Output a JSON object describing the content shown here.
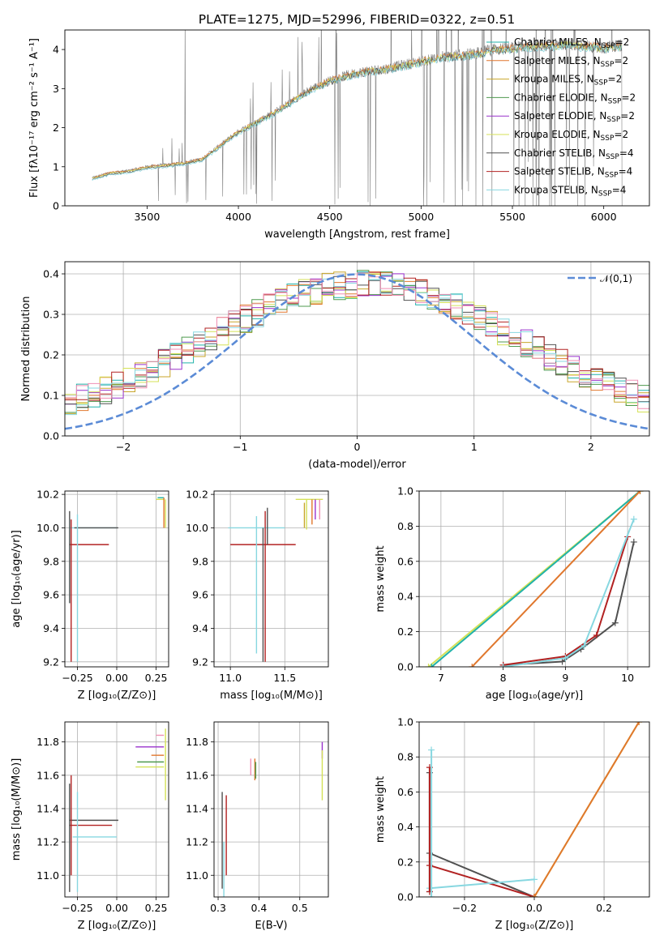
{
  "title": "PLATE=1275, MJD=52996, FIBERID=0322, z=0.51",
  "colors": {
    "chabrier_miles": "#20b2aa",
    "salpeter_miles": "#e0772d",
    "kroupa_miles": "#c8a62a",
    "chabrier_elodie": "#4f9a4f",
    "salpeter_elodie": "#9932cc",
    "kroupa_elodie": "#d4e157",
    "chabrier_stelib": "#505050",
    "salpeter_stelib": "#b22222",
    "kroupa_stelib": "#87d7e0",
    "pink": "#f08fb4",
    "gaussian": "#5b8bd6",
    "data": "#808080"
  },
  "chart_data": [
    {
      "type": "line",
      "id": "spectrum",
      "xlabel": "wavelength [Angstrom, rest frame]",
      "ylabel": "Flux [fλ10⁻¹⁷ erg cm⁻² s⁻¹ A⁻¹]",
      "xlim": [
        3050,
        6250
      ],
      "ylim": [
        0,
        4.5
      ],
      "xticks": [
        "3500",
        "4000",
        "4500",
        "5000",
        "5500",
        "6000"
      ],
      "yticks": [
        "0",
        "1",
        "2",
        "3",
        "4"
      ],
      "legend_position": "top-right",
      "legend": [
        {
          "pre": "Chabrier MILES, N",
          "sub": "SSP",
          "post": "=2"
        },
        {
          "pre": "Salpeter MILES, N",
          "sub": "SSP",
          "post": "=2"
        },
        {
          "pre": "Kroupa MILES, N",
          "sub": "SSP",
          "post": "=2"
        },
        {
          "pre": "Chabrier ELODIE, N",
          "sub": "SSP",
          "post": "=2"
        },
        {
          "pre": "Salpeter ELODIE, N",
          "sub": "SSP",
          "post": "=2"
        },
        {
          "pre": "Kroupa ELODIE, N",
          "sub": "SSP",
          "post": "=2"
        },
        {
          "pre": "Chabrier STELIB, N",
          "sub": "SSP",
          "post": "=4"
        },
        {
          "pre": "Salpeter STELIB, N",
          "sub": "SSP",
          "post": "=4"
        },
        {
          "pre": "Kroupa STELIB, N",
          "sub": "SSP",
          "post": "=4"
        }
      ],
      "continuum": [
        [
          3200,
          0.72
        ],
        [
          3300,
          0.85
        ],
        [
          3400,
          0.9
        ],
        [
          3500,
          1.0
        ],
        [
          3600,
          1.05
        ],
        [
          3700,
          1.1
        ],
        [
          3800,
          1.2
        ],
        [
          3900,
          1.55
        ],
        [
          4000,
          1.9
        ],
        [
          4100,
          2.15
        ],
        [
          4200,
          2.4
        ],
        [
          4300,
          2.7
        ],
        [
          4400,
          3.0
        ],
        [
          4500,
          3.2
        ],
        [
          4600,
          3.35
        ],
        [
          4700,
          3.45
        ],
        [
          4800,
          3.5
        ],
        [
          4900,
          3.6
        ],
        [
          5000,
          3.7
        ],
        [
          5100,
          3.8
        ],
        [
          5200,
          3.85
        ],
        [
          5300,
          3.9
        ],
        [
          5400,
          4.0
        ],
        [
          5500,
          4.05
        ],
        [
          5600,
          4.1
        ],
        [
          5700,
          4.1
        ],
        [
          5800,
          4.15
        ],
        [
          5900,
          4.1
        ],
        [
          6000,
          4.05
        ],
        [
          6100,
          4.1
        ]
      ]
    },
    {
      "type": "line",
      "id": "residuals",
      "xlabel": "(data-model)/error",
      "ylabel": "Normed distribution",
      "xlim": [
        -2.5,
        2.5
      ],
      "ylim": [
        0,
        0.43
      ],
      "xticks": [
        "−2",
        "−1",
        "0",
        "1",
        "2"
      ],
      "yticks": [
        "0.0",
        "0.1",
        "0.2",
        "0.3",
        "0.4"
      ],
      "legend_position": "top-right",
      "legend": [
        {
          "name": "𝒩(0,1)"
        }
      ],
      "bin_width": 0.1,
      "gaussian": {
        "mu": 0,
        "sigma": 1
      }
    },
    {
      "type": "line",
      "id": "age_vs_z",
      "xlabel": "Z [log₁₀(Z/Z⊙)]",
      "ylabel": "age  [log₁₀(age/yr)]",
      "xlim": [
        -0.33,
        0.33
      ],
      "ylim": [
        9.17,
        10.22
      ],
      "xticks": [
        "−0.25",
        "0.00",
        "0.25"
      ],
      "yticks": [
        "9.2",
        "9.4",
        "9.6",
        "9.8",
        "10.0",
        "10.2"
      ],
      "segments": [
        {
          "color": "kroupa_stelib",
          "x": [
            -0.3,
            0.0
          ],
          "y": [
            10.0,
            10.0
          ]
        },
        {
          "color": "chabrier_stelib",
          "x": [
            -0.27,
            0.01
          ],
          "y": [
            10.0,
            10.0
          ]
        },
        {
          "color": "salpeter_stelib",
          "x": [
            -0.3,
            -0.05
          ],
          "y": [
            9.9,
            9.9
          ]
        },
        {
          "color": "chabrier_stelib",
          "x": [
            -0.3,
            -0.3
          ],
          "y": [
            9.55,
            10.1
          ]
        },
        {
          "color": "salpeter_stelib",
          "x": [
            -0.29,
            -0.29
          ],
          "y": [
            9.2,
            10.05
          ]
        },
        {
          "color": "kroupa_stelib",
          "x": [
            -0.25,
            -0.25
          ],
          "y": [
            9.2,
            10.08
          ]
        },
        {
          "color": "kroupa_elodie",
          "x": [
            0.25,
            0.3
          ],
          "y": [
            10.17,
            10.17
          ]
        },
        {
          "color": "chabrier_miles",
          "x": [
            0.26,
            0.3
          ],
          "y": [
            10.18,
            10.18
          ]
        },
        {
          "color": "salpeter_miles",
          "x": [
            0.3,
            0.3
          ],
          "y": [
            10.0,
            10.18
          ]
        },
        {
          "color": "kroupa_elodie",
          "x": [
            0.31,
            0.31
          ],
          "y": [
            10.0,
            10.17
          ]
        }
      ]
    },
    {
      "type": "line",
      "id": "age_vs_mass",
      "xlabel": "mass [log₁₀(M/M⊙)]",
      "ylabel": "",
      "xlim": [
        10.85,
        11.9
      ],
      "ylim": [
        9.17,
        10.22
      ],
      "xticks": [
        "11.0",
        "11.5"
      ],
      "yticks": [
        "9.2",
        "9.4",
        "9.6",
        "9.8",
        "10.0",
        "10.2"
      ],
      "segments": [
        {
          "color": "kroupa_stelib",
          "x": [
            10.98,
            11.5
          ],
          "y": [
            10.0,
            10.0
          ]
        },
        {
          "color": "salpeter_stelib",
          "x": [
            11.0,
            11.6
          ],
          "y": [
            9.9,
            9.9
          ]
        },
        {
          "color": "chabrier_stelib",
          "x": [
            11.3,
            11.3
          ],
          "y": [
            9.2,
            10.0
          ]
        },
        {
          "color": "salpeter_stelib",
          "x": [
            11.32,
            11.32
          ],
          "y": [
            9.2,
            10.1
          ]
        },
        {
          "color": "kroupa_stelib",
          "x": [
            11.24,
            11.24
          ],
          "y": [
            9.25,
            10.07
          ]
        },
        {
          "color": "chabrier_stelib",
          "x": [
            11.34,
            11.34
          ],
          "y": [
            9.9,
            10.12
          ]
        },
        {
          "color": "kroupa_elodie",
          "x": [
            11.6,
            11.85
          ],
          "y": [
            10.17,
            10.17
          ]
        },
        {
          "color": "kroupa_elodie",
          "x": [
            11.7,
            11.7
          ],
          "y": [
            9.99,
            10.17
          ]
        },
        {
          "color": "salpeter_miles",
          "x": [
            11.75,
            11.75
          ],
          "y": [
            10.02,
            10.17
          ]
        },
        {
          "color": "salpeter_elodie",
          "x": [
            11.78,
            11.78
          ],
          "y": [
            10.05,
            10.17
          ]
        },
        {
          "color": "pink",
          "x": [
            11.82,
            11.82
          ],
          "y": [
            10.05,
            10.17
          ]
        },
        {
          "color": "kroupa_miles",
          "x": [
            11.68,
            11.68
          ],
          "y": [
            10.0,
            10.15
          ]
        }
      ]
    },
    {
      "type": "line",
      "id": "mass_weight_vs_age",
      "xlabel": "age  [log₁₀(age/yr)]",
      "ylabel": "mass weight",
      "xlim": [
        6.65,
        10.35
      ],
      "ylim": [
        0,
        1.0
      ],
      "xticks": [
        "7",
        "8",
        "9",
        "10"
      ],
      "yticks": [
        "0.0",
        "0.2",
        "0.4",
        "0.6",
        "0.8",
        "1.0"
      ],
      "series": [
        {
          "color": "kroupa_elodie",
          "x": [
            6.8,
            10.2
          ],
          "y": [
            0.0,
            1.0
          ]
        },
        {
          "color": "chabrier_miles",
          "x": [
            6.85,
            10.2
          ],
          "y": [
            0.0,
            1.0
          ]
        },
        {
          "color": "salpeter_miles",
          "x": [
            7.5,
            10.2
          ],
          "y": [
            0.0,
            1.0
          ]
        },
        {
          "color": "chabrier_stelib",
          "x": [
            8.0,
            8.95,
            9.25,
            9.8,
            10.1
          ],
          "y": [
            0.01,
            0.03,
            0.1,
            0.25,
            0.71
          ]
        },
        {
          "color": "salpeter_stelib",
          "x": [
            8.0,
            9.0,
            9.5,
            10.0
          ],
          "y": [
            0.01,
            0.06,
            0.18,
            0.74
          ]
        },
        {
          "color": "kroupa_stelib",
          "x": [
            8.0,
            9.0,
            9.3,
            10.1
          ],
          "y": [
            0.0,
            0.05,
            0.12,
            0.84
          ]
        }
      ]
    },
    {
      "type": "line",
      "id": "mass_vs_z",
      "xlabel": "Z [log₁₀(Z/Z⊙)]",
      "ylabel": "mass [log₁₀(M/M⊙)]",
      "xlim": [
        -0.33,
        0.33
      ],
      "ylim": [
        10.87,
        11.92
      ],
      "xticks": [
        "−0.25",
        "0.00",
        "0.25"
      ],
      "yticks": [
        "11.0",
        "11.2",
        "11.4",
        "11.6",
        "11.8"
      ],
      "segments": [
        {
          "color": "chabrier_stelib",
          "x": [
            -0.3,
            0.01
          ],
          "y": [
            11.33,
            11.33
          ]
        },
        {
          "color": "salpeter_stelib",
          "x": [
            -0.3,
            -0.03
          ],
          "y": [
            11.3,
            11.3
          ]
        },
        {
          "color": "kroupa_stelib",
          "x": [
            -0.28,
            0.0
          ],
          "y": [
            11.23,
            11.23
          ]
        },
        {
          "color": "salpeter_stelib",
          "x": [
            -0.29,
            -0.29
          ],
          "y": [
            11.0,
            11.6
          ]
        },
        {
          "color": "chabrier_stelib",
          "x": [
            -0.3,
            -0.3
          ],
          "y": [
            10.9,
            11.55
          ]
        },
        {
          "color": "kroupa_stelib",
          "x": [
            -0.25,
            -0.25
          ],
          "y": [
            10.9,
            11.5
          ]
        },
        {
          "color": "salpeter_elodie",
          "x": [
            0.12,
            0.3
          ],
          "y": [
            11.77,
            11.77
          ]
        },
        {
          "color": "chabrier_elodie",
          "x": [
            0.13,
            0.3
          ],
          "y": [
            11.68,
            11.68
          ]
        },
        {
          "color": "kroupa_elodie",
          "x": [
            0.12,
            0.3
          ],
          "y": [
            11.65,
            11.65
          ]
        },
        {
          "color": "salpeter_miles",
          "x": [
            0.22,
            0.3
          ],
          "y": [
            11.72,
            11.72
          ]
        },
        {
          "color": "pink",
          "x": [
            0.25,
            0.3
          ],
          "y": [
            11.84,
            11.84
          ]
        },
        {
          "color": "kroupa_elodie",
          "x": [
            0.31,
            0.31
          ],
          "y": [
            11.45,
            11.88
          ]
        }
      ]
    },
    {
      "type": "line",
      "id": "mass_vs_ebv",
      "xlabel": "E(B-V)",
      "ylabel": "",
      "xlim": [
        0.29,
        0.57
      ],
      "ylim": [
        10.87,
        11.92
      ],
      "xticks": [
        "0.3",
        "0.4",
        "0.5"
      ],
      "yticks": [
        "11.0",
        "11.2",
        "11.4",
        "11.6",
        "11.8"
      ],
      "segments": [
        {
          "color": "chabrier_stelib",
          "x": [
            0.31,
            0.31
          ],
          "y": [
            10.92,
            11.5
          ]
        },
        {
          "color": "kroupa_stelib",
          "x": [
            0.314,
            0.314
          ],
          "y": [
            10.87,
            11.2
          ]
        },
        {
          "color": "salpeter_stelib",
          "x": [
            0.32,
            0.32
          ],
          "y": [
            11.0,
            11.48
          ]
        },
        {
          "color": "pink",
          "x": [
            0.38,
            0.38
          ],
          "y": [
            11.6,
            11.7
          ]
        },
        {
          "color": "salpeter_miles",
          "x": [
            0.39,
            0.39
          ],
          "y": [
            11.57,
            11.7
          ]
        },
        {
          "color": "chabrier_elodie",
          "x": [
            0.392,
            0.392
          ],
          "y": [
            11.58,
            11.68
          ]
        },
        {
          "color": "salpeter_elodie",
          "x": [
            0.555,
            0.555
          ],
          "y": [
            11.7,
            11.8
          ]
        },
        {
          "color": "kroupa_elodie",
          "x": [
            0.555,
            0.555
          ],
          "y": [
            11.45,
            11.75
          ]
        }
      ]
    },
    {
      "type": "line",
      "id": "mass_weight_vs_z",
      "xlabel": "Z [log₁₀(Z/Z⊙)]",
      "ylabel": "mass weight",
      "xlim": [
        -0.33,
        0.33
      ],
      "ylim": [
        0,
        1.0
      ],
      "xticks": [
        "−0.2",
        "0.0",
        "0.2"
      ],
      "yticks": [
        "0.0",
        "0.2",
        "0.4",
        "0.6",
        "0.8",
        "1.0"
      ],
      "series": [
        {
          "color": "chabrier_stelib",
          "x": [
            -0.3,
            0.0
          ],
          "y": [
            0.25,
            0.0
          ]
        },
        {
          "color": "salpeter_stelib",
          "x": [
            -0.3,
            0.0
          ],
          "y": [
            0.18,
            0.0
          ]
        },
        {
          "color": "kroupa_stelib",
          "x": [
            -0.3,
            0.0
          ],
          "y": [
            0.05,
            0.1
          ]
        },
        {
          "color": "kroupa_elodie",
          "x": [
            0.0,
            0.3
          ],
          "y": [
            0.0,
            1.0
          ]
        },
        {
          "color": "salpeter_miles",
          "x": [
            0.0,
            0.3
          ],
          "y": [
            0.0,
            1.0
          ]
        },
        {
          "color": "chabrier_stelib",
          "x": [
            -0.3,
            -0.3
          ],
          "y": [
            0.03,
            0.71
          ]
        },
        {
          "color": "salpeter_stelib",
          "x": [
            -0.3,
            -0.3
          ],
          "y": [
            0.03,
            0.74
          ]
        },
        {
          "color": "kroupa_stelib",
          "x": [
            -0.295,
            -0.295
          ],
          "y": [
            0.0,
            0.84
          ]
        }
      ]
    }
  ]
}
